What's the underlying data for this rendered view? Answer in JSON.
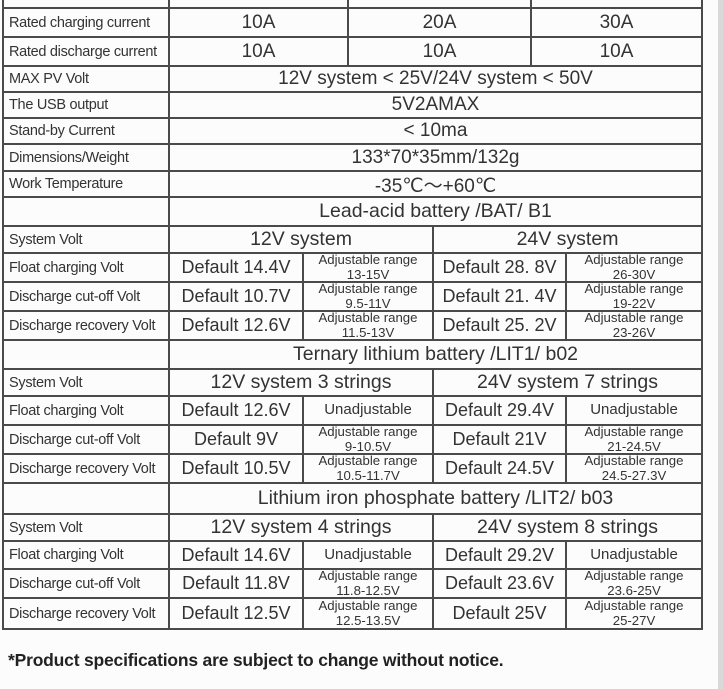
{
  "colors": {
    "border": "#4a4a4a",
    "text": "#333333",
    "background": "#fcfcfc",
    "edge_strip": "#d9d9d9"
  },
  "table": {
    "current_rows": [
      {
        "label": "Rated charging current",
        "v1": "10A",
        "v2": "20A",
        "v3": "30A"
      },
      {
        "label": "Rated discharge current",
        "v1": "10A",
        "v2": "10A",
        "v3": "10A"
      }
    ],
    "span_rows": [
      {
        "label": "MAX PV Volt",
        "value": "12V system < 25V/24V system < 50V"
      },
      {
        "label": "The USB output",
        "value": "5V2AMAX"
      },
      {
        "label": "Stand-by Current",
        "value": "< 10ma"
      },
      {
        "label": "Dimensions/Weight",
        "value": "133*70*35mm/132g"
      },
      {
        "label": "Work Temperature",
        "value": "-35℃～+60℃"
      }
    ],
    "sections": [
      {
        "title": "Lead-acid battery /BAT/ B1",
        "system_label": "System Volt",
        "system_12": "12V system",
        "system_24": "24V system",
        "rows": [
          {
            "label": "Float charging Volt",
            "def12": "Default 14.4V",
            "adj12_1": "Adjustable range",
            "adj12_2": "13-15V",
            "def24": "Default 28. 8V",
            "adj24_1": "Adjustable range",
            "adj24_2": "26-30V"
          },
          {
            "label": "Discharge cut-off Volt",
            "def12": "Default 10.7V",
            "adj12_1": "Adjustable range",
            "adj12_2": "9.5-11V",
            "def24": "Default 21. 4V",
            "adj24_1": "Adjustable range",
            "adj24_2": "19-22V"
          },
          {
            "label": "Discharge recovery Volt",
            "def12": "Default 12.6V",
            "adj12_1": "Adjustable range",
            "adj12_2": "11.5-13V",
            "def24": "Default 25. 2V",
            "adj24_1": "Adjustable range",
            "adj24_2": "23-26V"
          }
        ]
      },
      {
        "title": "Ternary lithium battery /LIT1/ b02",
        "system_label": "System Volt",
        "system_12": "12V system 3 strings",
        "system_24": "24V system 7 strings",
        "rows": [
          {
            "label": "Float charging Volt",
            "def12": "Default 12.6V",
            "adj12_1": "Unadjustable",
            "adj12_2": "",
            "def24": "Default 29.4V",
            "adj24_1": "Unadjustable",
            "adj24_2": ""
          },
          {
            "label": "Discharge cut-off Volt",
            "def12": "Default 9V",
            "adj12_1": "Adjustable range",
            "adj12_2": "9-10.5V",
            "def24": "Default 21V",
            "adj24_1": "Adjustable range",
            "adj24_2": "21-24.5V"
          },
          {
            "label": "Discharge recovery Volt",
            "def12": "Default 10.5V",
            "adj12_1": "Adjustable range",
            "adj12_2": "10.5-11.7V",
            "def24": "Default 24.5V",
            "adj24_1": "Adjustable range",
            "adj24_2": "24.5-27.3V"
          }
        ]
      },
      {
        "title": "Lithium iron phosphate battery /LIT2/ b03",
        "system_label": "System Volt",
        "system_12": "12V system 4 strings",
        "system_24": "24V system 8 strings",
        "rows": [
          {
            "label": "Float charging Volt",
            "def12": "Default 14.6V",
            "adj12_1": "Unadjustable",
            "adj12_2": "",
            "def24": "Default 29.2V",
            "adj24_1": "Unadjustable",
            "adj24_2": ""
          },
          {
            "label": "Discharge cut-off Volt",
            "def12": "Default 11.8V",
            "adj12_1": "Adjustable range",
            "adj12_2": "11.8-12.5V",
            "def24": "Default 23.6V",
            "adj24_1": "Adjustable range",
            "adj24_2": "23.6-25V"
          },
          {
            "label": "Discharge recovery Volt",
            "def12": "Default 12.5V",
            "adj12_1": "Adjustable range",
            "adj12_2": "12.5-13.5V",
            "def24": "Default 25V",
            "adj24_1": "Adjustable range",
            "adj24_2": "25-27V"
          }
        ]
      }
    ]
  },
  "footer": {
    "note": "*Product specifications are subject to change without notice."
  }
}
